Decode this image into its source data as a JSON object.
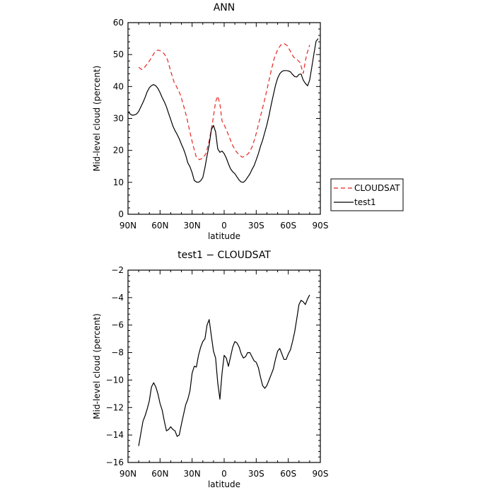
{
  "chart_data": [
    {
      "type": "line",
      "title": "ANN",
      "xlabel": "latitude",
      "ylabel": "Mid-level cloud (percent)",
      "xlim": [
        90,
        -90
      ],
      "ylim": [
        0,
        60
      ],
      "xticks": [
        90,
        60,
        30,
        0,
        -30,
        -60,
        -90
      ],
      "xtick_labels": [
        "90N",
        "60N",
        "30N",
        "0",
        "30S",
        "60S",
        "90S"
      ],
      "yticks": [
        0,
        10,
        20,
        30,
        40,
        50,
        60
      ],
      "legend": {
        "position": "right",
        "entries": [
          "CLOUDSAT",
          "test1"
        ]
      },
      "series": [
        {
          "name": "CLOUDSAT",
          "color": "#e8231f",
          "dash": "dashed",
          "x": [
            80,
            77,
            74,
            71,
            68,
            65,
            62,
            59,
            56,
            53,
            50,
            47,
            44,
            41,
            38,
            35,
            32,
            29,
            26,
            23,
            20,
            17,
            14,
            11,
            8,
            6,
            4,
            2,
            0,
            -2,
            -5,
            -8,
            -11,
            -14,
            -17,
            -20,
            -23,
            -26,
            -29,
            -32,
            -35,
            -38,
            -41,
            -44,
            -47,
            -50,
            -53,
            -56,
            -59,
            -62,
            -65,
            -68,
            -71,
            -74,
            -77,
            -80
          ],
          "y": [
            46,
            45.3,
            46.2,
            47.5,
            49,
            50.8,
            51.4,
            51.1,
            50.2,
            48.4,
            44.8,
            41.5,
            39.6,
            37.5,
            34,
            30.3,
            25.7,
            21.4,
            17.8,
            17.1,
            17.6,
            19,
            23,
            28.5,
            35.2,
            37,
            34.5,
            29.2,
            28,
            26.5,
            24,
            21.5,
            19.8,
            18.5,
            17.9,
            18.2,
            19.2,
            21,
            24,
            28,
            32,
            36,
            40.5,
            45,
            49,
            51.5,
            53,
            53.5,
            52.8,
            51,
            49.2,
            48.5,
            47.5,
            44.1,
            49.8,
            53
          ]
        },
        {
          "name": "test1",
          "color": "#000000",
          "dash": "solid",
          "x": [
            90,
            88,
            86,
            84,
            82,
            80,
            78,
            76,
            74,
            72,
            70,
            68,
            66,
            64,
            62,
            60,
            58,
            56,
            54,
            52,
            50,
            48,
            46,
            44,
            42,
            40,
            38,
            36,
            34,
            32,
            30,
            28,
            26,
            24,
            22,
            20,
            18,
            16,
            14,
            12,
            10,
            8,
            6,
            4,
            2,
            0,
            -2,
            -4,
            -6,
            -8,
            -10,
            -12,
            -14,
            -16,
            -18,
            -20,
            -22,
            -24,
            -26,
            -28,
            -30,
            -32,
            -34,
            -36,
            -38,
            -40,
            -42,
            -44,
            -46,
            -48,
            -50,
            -52,
            -54,
            -56,
            -58,
            -60,
            -62,
            -64,
            -66,
            -68,
            -70,
            -72,
            -74,
            -76,
            -78,
            -80,
            -82,
            -84,
            -86,
            -88
          ],
          "y": [
            32.2,
            31.4,
            31,
            31.1,
            31.4,
            32.2,
            33.6,
            35,
            36.6,
            38.4,
            39.6,
            40.3,
            40.6,
            40.2,
            39.4,
            38.1,
            36.5,
            35.2,
            33.6,
            31.6,
            29.7,
            27.6,
            26.2,
            25,
            23.6,
            21.9,
            20.4,
            18.5,
            16.1,
            14.9,
            13,
            10.6,
            10.1,
            10,
            10.5,
            11.5,
            14.6,
            18.3,
            21.7,
            26.5,
            27.8,
            25.8,
            20.5,
            19.4,
            19.8,
            19,
            17.6,
            15.8,
            14.2,
            13.3,
            12.7,
            11.7,
            10.7,
            10.1,
            10,
            10.6,
            11.6,
            12.6,
            14,
            15.2,
            17,
            19,
            21.3,
            23.2,
            25.6,
            28,
            31,
            34.3,
            37.3,
            40.3,
            42.6,
            44,
            44.7,
            45,
            45,
            44.9,
            44.6,
            43.8,
            43.1,
            43,
            43.8,
            43.9,
            42,
            41,
            40.2,
            42,
            46,
            50.2,
            54.2,
            55
          ]
        }
      ]
    },
    {
      "type": "line",
      "title": "test1 − CLOUDSAT",
      "xlabel": "latitude",
      "ylabel": "Mid-level cloud (percent)",
      "xlim": [
        90,
        -90
      ],
      "ylim": [
        -16,
        -2
      ],
      "xticks": [
        90,
        60,
        30,
        0,
        -30,
        -60,
        -90
      ],
      "xtick_labels": [
        "90N",
        "60N",
        "30N",
        "0",
        "30S",
        "60S",
        "90S"
      ],
      "yticks": [
        -16,
        -14,
        -12,
        -10,
        -8,
        -6,
        -4,
        -2
      ],
      "series": [
        {
          "color": "#000000",
          "dash": "solid",
          "x": [
            80,
            78,
            76,
            74,
            72,
            70,
            68,
            66,
            64,
            62,
            60,
            58,
            56,
            54,
            52,
            50,
            48,
            46,
            44,
            42,
            40,
            38,
            36,
            34,
            32,
            30,
            28,
            26,
            24,
            22,
            20,
            18,
            16,
            14,
            12,
            10,
            8,
            6,
            4,
            2,
            0,
            -2,
            -4,
            -6,
            -8,
            -10,
            -12,
            -14,
            -16,
            -18,
            -20,
            -22,
            -24,
            -26,
            -28,
            -30,
            -32,
            -34,
            -36,
            -38,
            -40,
            -42,
            -44,
            -46,
            -48,
            -50,
            -52,
            -54,
            -56,
            -58,
            -60,
            -62,
            -64,
            -66,
            -68,
            -70,
            -72,
            -74,
            -76,
            -78,
            -80
          ],
          "y": [
            -14.8,
            -13.9,
            -13,
            -12.6,
            -12.1,
            -11.5,
            -10.5,
            -10.2,
            -10.5,
            -11,
            -11.7,
            -12.2,
            -13.0,
            -13.7,
            -13.6,
            -13.4,
            -13.6,
            -13.7,
            -14.1,
            -14.0,
            -13.2,
            -12.5,
            -11.8,
            -11.4,
            -10.8,
            -9.5,
            -9.0,
            -9.05,
            -8.2,
            -7.6,
            -7.2,
            -7.0,
            -6.0,
            -5.6,
            -6.8,
            -7.9,
            -8.4,
            -10.2,
            -11.4,
            -9.5,
            -8.2,
            -8.4,
            -9.0,
            -8.3,
            -7.6,
            -7.2,
            -7.3,
            -7.6,
            -8.1,
            -8.4,
            -8.3,
            -8.0,
            -8.0,
            -8.3,
            -8.6,
            -8.7,
            -9.1,
            -9.8,
            -10.4,
            -10.6,
            -10.4,
            -10.0,
            -9.6,
            -9.2,
            -8.5,
            -7.9,
            -7.7,
            -8.1,
            -8.5,
            -8.5,
            -8.1,
            -7.8,
            -7.2,
            -6.5,
            -5.5,
            -4.5,
            -4.2,
            -4.3,
            -4.5,
            -4.1,
            -3.8
          ]
        }
      ]
    }
  ]
}
